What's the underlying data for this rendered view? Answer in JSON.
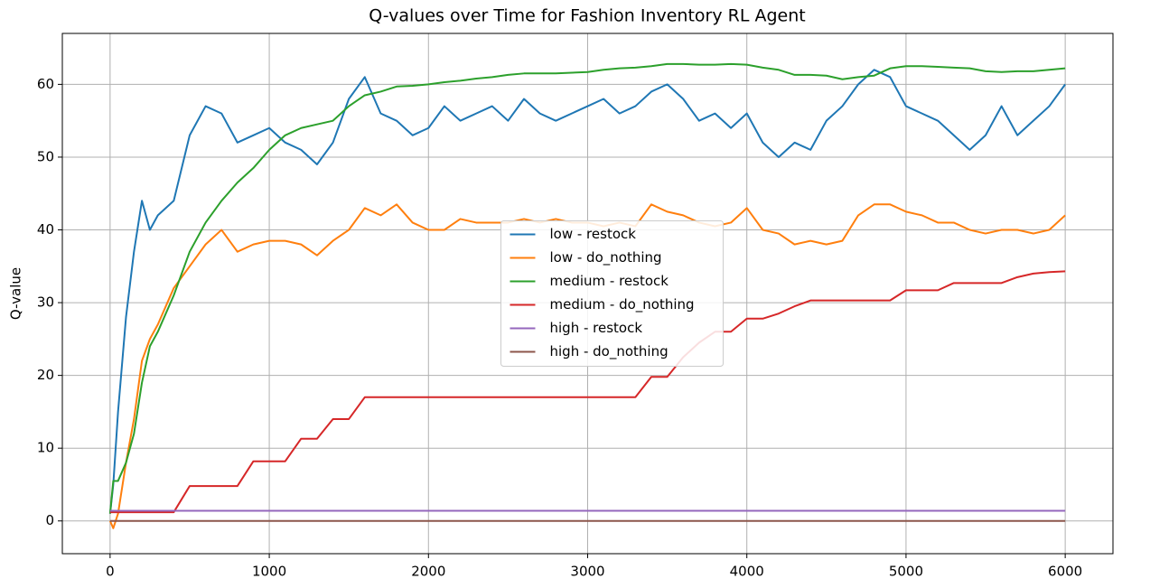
{
  "chart_data": {
    "type": "line",
    "title": "Q-values over Time for Fashion Inventory RL Agent",
    "ylabel": "Q-value",
    "x": [
      0,
      20,
      50,
      100,
      150,
      200,
      250,
      300,
      400,
      500,
      600,
      700,
      800,
      900,
      1000,
      1100,
      1200,
      1300,
      1400,
      1500,
      1600,
      1700,
      1800,
      1900,
      2000,
      2100,
      2200,
      2300,
      2400,
      2500,
      2600,
      2700,
      2800,
      2900,
      3000,
      3100,
      3200,
      3300,
      3400,
      3500,
      3600,
      3700,
      3800,
      3900,
      4000,
      4100,
      4200,
      4300,
      4400,
      4500,
      4600,
      4700,
      4800,
      4900,
      5000,
      5100,
      5200,
      5300,
      5400,
      5500,
      5600,
      5700,
      5800,
      5900,
      6000
    ],
    "series": [
      {
        "name": "low - restock",
        "color": "#1f77b4",
        "values": [
          1,
          5,
          15,
          28,
          37,
          44,
          40,
          42,
          44,
          53,
          57,
          56,
          52,
          53,
          54,
          52,
          51,
          49,
          52,
          58,
          61,
          56,
          55,
          53,
          54,
          57,
          55,
          56,
          57,
          55,
          58,
          56,
          55,
          56,
          57,
          58,
          56,
          57,
          59,
          60,
          58,
          55,
          56,
          54,
          56,
          52,
          50,
          52,
          51,
          55,
          57,
          60,
          62,
          61,
          57,
          56,
          55,
          53,
          51,
          53,
          57,
          53,
          55,
          57,
          60
        ]
      },
      {
        "name": "low - do_nothing",
        "color": "#ff7f0e",
        "values": [
          0,
          -1,
          1,
          8,
          14,
          22,
          25,
          27,
          32,
          35,
          38,
          40,
          37,
          38,
          38.5,
          38.5,
          38,
          36.5,
          38.5,
          40,
          43,
          42,
          43.5,
          41,
          40,
          40,
          41.5,
          41,
          41,
          41,
          41.5,
          41,
          41.5,
          41,
          41,
          40.5,
          41,
          40.5,
          43.5,
          42.5,
          42,
          41,
          40.5,
          41,
          43,
          40,
          39.5,
          38,
          38.5,
          38,
          38.5,
          42,
          43.5,
          43.5,
          42.5,
          42,
          41,
          41,
          40,
          39.5,
          40,
          40,
          39.5,
          40,
          42
        ]
      },
      {
        "name": "medium - restock",
        "color": "#2ca02c",
        "values": [
          1,
          5.5,
          5.5,
          8,
          12,
          19,
          24,
          26,
          31,
          37,
          41,
          44,
          46.5,
          48.5,
          51,
          53,
          54,
          54.5,
          55,
          57,
          58.5,
          59,
          59.7,
          59.8,
          60,
          60.3,
          60.5,
          60.8,
          61,
          61.3,
          61.5,
          61.5,
          61.5,
          61.6,
          61.7,
          62,
          62.2,
          62.3,
          62.5,
          62.8,
          62.8,
          62.7,
          62.7,
          62.8,
          62.7,
          62.3,
          62,
          61.3,
          61.3,
          61.2,
          60.7,
          61,
          61.2,
          62.2,
          62.5,
          62.5,
          62.4,
          62.3,
          62.2,
          61.8,
          61.7,
          61.8,
          61.8,
          62,
          62.2
        ]
      },
      {
        "name": "medium - do_nothing",
        "color": "#d62728",
        "values": [
          1.2,
          1.2,
          1.2,
          1.2,
          1.2,
          1.2,
          1.2,
          1.2,
          1.2,
          4.8,
          4.8,
          4.8,
          4.8,
          8.2,
          8.2,
          8.2,
          11.3,
          11.3,
          14,
          14,
          17,
          17,
          17,
          17,
          17,
          17,
          17,
          17,
          17,
          17,
          17,
          17,
          17,
          17,
          17,
          17,
          17,
          17,
          19.8,
          19.8,
          22.5,
          24.5,
          26,
          26,
          27.8,
          27.8,
          28.5,
          29.5,
          30.3,
          30.3,
          30.3,
          30.3,
          30.3,
          30.3,
          31.7,
          31.7,
          31.7,
          32.7,
          32.7,
          32.7,
          32.7,
          33.5,
          34,
          34.2,
          34.3
        ]
      },
      {
        "name": "high - restock",
        "color": "#9467bd",
        "values": [
          1.4,
          1.4,
          1.4,
          1.4,
          1.4,
          1.4,
          1.4,
          1.4,
          1.4,
          1.4,
          1.4,
          1.4,
          1.4,
          1.4,
          1.4,
          1.4,
          1.4,
          1.4,
          1.4,
          1.4,
          1.4,
          1.4,
          1.4,
          1.4,
          1.4,
          1.4,
          1.4,
          1.4,
          1.4,
          1.4,
          1.4,
          1.4,
          1.4,
          1.4,
          1.4,
          1.4,
          1.4,
          1.4,
          1.4,
          1.4,
          1.4,
          1.4,
          1.4,
          1.4,
          1.4,
          1.4,
          1.4,
          1.4,
          1.4,
          1.4,
          1.4,
          1.4,
          1.4,
          1.4,
          1.4,
          1.4,
          1.4,
          1.4,
          1.4,
          1.4,
          1.4,
          1.4,
          1.4,
          1.4,
          1.4
        ]
      },
      {
        "name": "high - do_nothing",
        "color": "#8c564b",
        "values": [
          0,
          0,
          0,
          0,
          0,
          0,
          0,
          0,
          0,
          0,
          0,
          0,
          0,
          0,
          0,
          0,
          0,
          0,
          0,
          0,
          0,
          0,
          0,
          0,
          0,
          0,
          0,
          0,
          0,
          0,
          0,
          0,
          0,
          0,
          0,
          0,
          0,
          0,
          0,
          0,
          0,
          0,
          0,
          0,
          0,
          0,
          0,
          0,
          0,
          0,
          0,
          0,
          0,
          0,
          0,
          0,
          0,
          0,
          0,
          0,
          0,
          0,
          0,
          0,
          0
        ]
      }
    ],
    "xlim": [
      -300,
      6300
    ],
    "xticks": [
      0,
      1000,
      2000,
      3000,
      4000,
      5000,
      6000
    ],
    "ylim": [
      -4.5,
      67
    ],
    "yticks": [
      0,
      10,
      20,
      30,
      40,
      50,
      60
    ],
    "grid": true,
    "legend": "center"
  }
}
